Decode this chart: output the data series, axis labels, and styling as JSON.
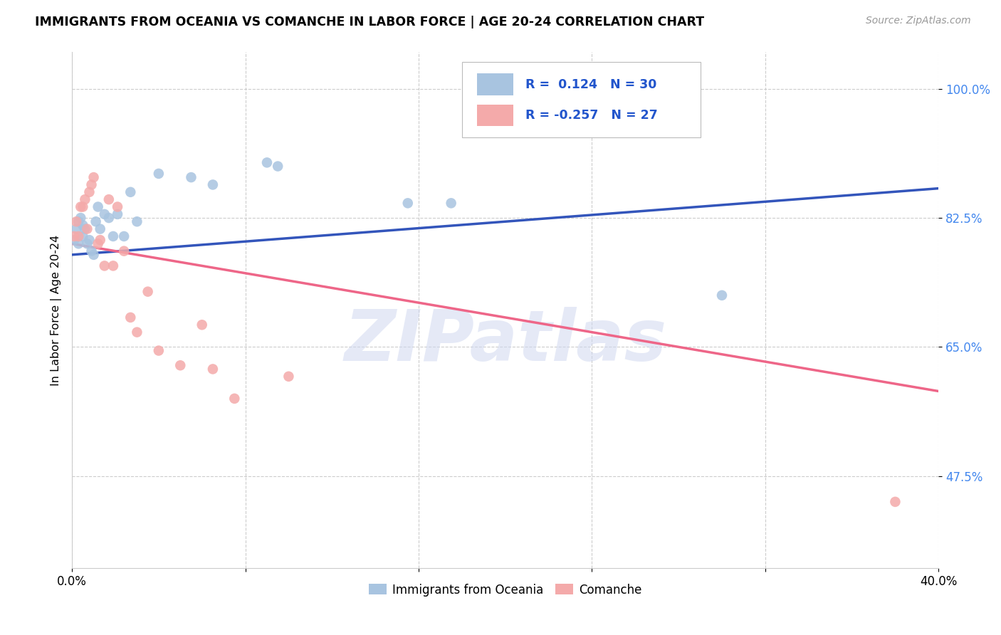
{
  "title": "IMMIGRANTS FROM OCEANIA VS COMANCHE IN LABOR FORCE | AGE 20-24 CORRELATION CHART",
  "source": "Source: ZipAtlas.com",
  "ylabel": "In Labor Force | Age 20-24",
  "xlim": [
    0.0,
    0.4
  ],
  "ylim": [
    0.35,
    1.05
  ],
  "yticks": [
    0.475,
    0.65,
    0.825,
    1.0
  ],
  "ytick_labels": [
    "47.5%",
    "65.0%",
    "82.5%",
    "100.0%"
  ],
  "xticks": [
    0.0,
    0.08,
    0.16,
    0.24,
    0.32,
    0.4
  ],
  "xtick_labels": [
    "0.0%",
    "",
    "",
    "",
    "",
    "40.0%"
  ],
  "blue_R": 0.124,
  "blue_N": 30,
  "pink_R": -0.257,
  "pink_N": 27,
  "blue_color": "#A8C4E0",
  "pink_color": "#F4AAAA",
  "blue_line_color": "#3355BB",
  "pink_line_color": "#EE6688",
  "watermark": "ZIPatlas",
  "blue_x": [
    0.001,
    0.002,
    0.003,
    0.003,
    0.004,
    0.005,
    0.005,
    0.006,
    0.007,
    0.008,
    0.009,
    0.01,
    0.011,
    0.012,
    0.013,
    0.015,
    0.017,
    0.019,
    0.021,
    0.024,
    0.027,
    0.03,
    0.04,
    0.055,
    0.065,
    0.09,
    0.095,
    0.155,
    0.175,
    0.3
  ],
  "blue_y": [
    0.795,
    0.81,
    0.82,
    0.79,
    0.825,
    0.815,
    0.8,
    0.81,
    0.79,
    0.795,
    0.78,
    0.775,
    0.82,
    0.84,
    0.81,
    0.83,
    0.825,
    0.8,
    0.83,
    0.8,
    0.86,
    0.82,
    0.885,
    0.88,
    0.87,
    0.9,
    0.895,
    0.845,
    0.845,
    0.72
  ],
  "pink_x": [
    0.001,
    0.002,
    0.003,
    0.004,
    0.005,
    0.006,
    0.007,
    0.008,
    0.009,
    0.01,
    0.012,
    0.013,
    0.015,
    0.017,
    0.019,
    0.021,
    0.024,
    0.027,
    0.03,
    0.035,
    0.04,
    0.05,
    0.06,
    0.065,
    0.075,
    0.1,
    0.38
  ],
  "pink_y": [
    0.8,
    0.82,
    0.8,
    0.84,
    0.84,
    0.85,
    0.81,
    0.86,
    0.87,
    0.88,
    0.79,
    0.795,
    0.76,
    0.85,
    0.76,
    0.84,
    0.78,
    0.69,
    0.67,
    0.725,
    0.645,
    0.625,
    0.68,
    0.62,
    0.58,
    0.61,
    0.44
  ]
}
